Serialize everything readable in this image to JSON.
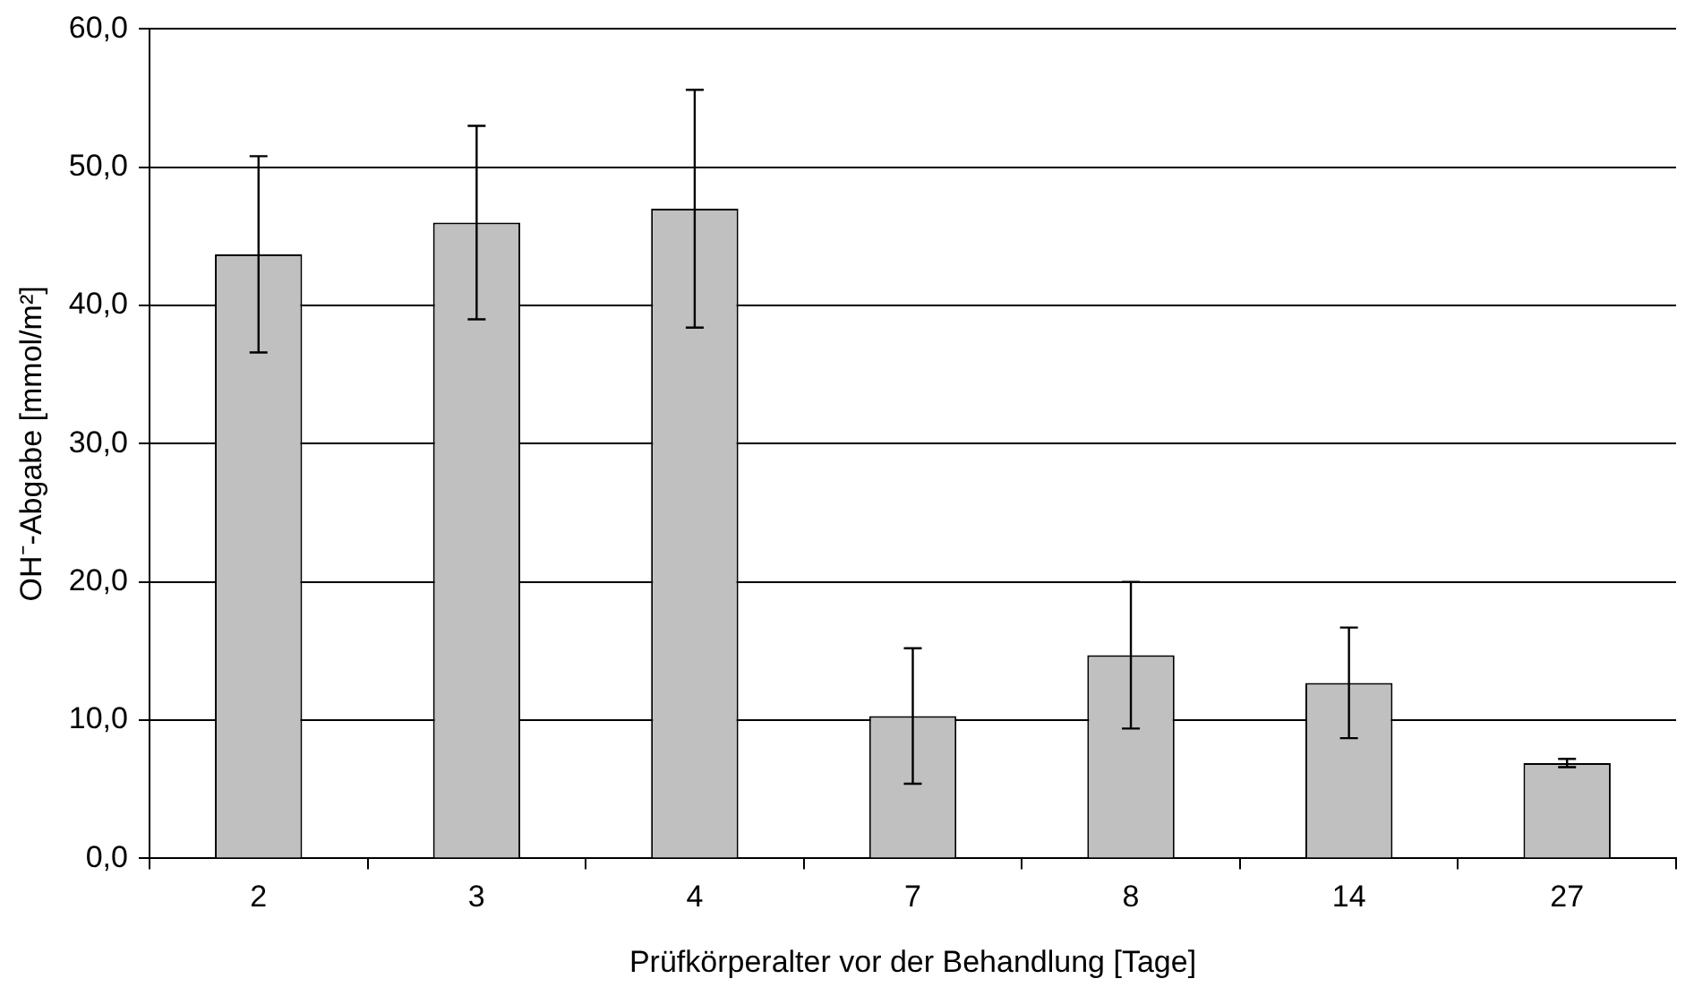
{
  "chart_data": {
    "type": "bar",
    "xlabel": "Prüfkörperalter vor der Behandlung [Tage]",
    "ylabel": "OH⁻-Abgabe [mmol/m²]",
    "categories": [
      "2",
      "3",
      "4",
      "7",
      "8",
      "14",
      "27"
    ],
    "values": [
      43.7,
      46.0,
      47.0,
      10.3,
      14.7,
      12.7,
      6.9
    ],
    "errors": [
      7.1,
      7.0,
      8.6,
      4.9,
      5.3,
      4.0,
      0.3
    ],
    "color": "#c0c0c0",
    "ylim": [
      0,
      60
    ],
    "yticks": [
      {
        "value": 0,
        "label": "0,0"
      },
      {
        "value": 10,
        "label": "10,0"
      },
      {
        "value": 20,
        "label": "20,0"
      },
      {
        "value": 30,
        "label": "30,0"
      },
      {
        "value": 40,
        "label": "40,0"
      },
      {
        "value": 50,
        "label": "50,0"
      },
      {
        "value": 60,
        "label": "60,0"
      }
    ],
    "grid": "y"
  }
}
